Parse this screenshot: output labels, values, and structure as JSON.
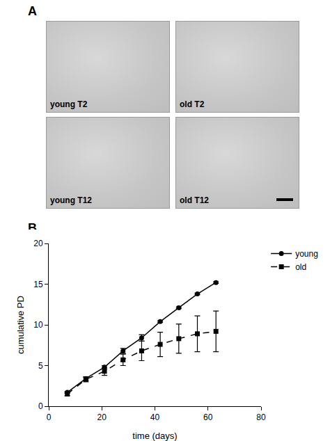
{
  "panel_a": {
    "label": "A",
    "images": [
      "young T2",
      "old T2",
      "young T12",
      "old T12"
    ]
  },
  "panel_b": {
    "label": "B"
  },
  "chart_data": {
    "type": "line",
    "x_label": "time (days)",
    "y_label": "cumulative PD",
    "x": [
      7,
      14,
      21,
      28,
      35,
      42,
      49,
      56,
      63
    ],
    "series": [
      {
        "name": "young",
        "color": "#000000",
        "marker": "circle",
        "line_style": "solid",
        "values": [
          1.7,
          3.4,
          4.8,
          6.8,
          8.4,
          10.4,
          12.1,
          13.8,
          15.2
        ],
        "error": [
          0.1,
          0.2,
          0.2,
          0.3,
          0.4,
          0.1,
          0.1,
          0.1,
          0.1
        ]
      },
      {
        "name": "old",
        "color": "#000000",
        "marker": "square",
        "line_style": "dash",
        "values": [
          1.5,
          3.3,
          4.3,
          5.7,
          6.8,
          7.6,
          8.3,
          8.9,
          9.2
        ],
        "error": [
          0.2,
          0.3,
          0.5,
          0.7,
          1.2,
          1.5,
          1.8,
          2.2,
          2.5
        ]
      }
    ],
    "xlim": [
      0,
      80
    ],
    "xticks": [
      0,
      20,
      40,
      60,
      80
    ],
    "ylim": [
      0,
      20
    ],
    "yticks": [
      0,
      5,
      10,
      15,
      20
    ],
    "grid": false,
    "legend": "right"
  }
}
